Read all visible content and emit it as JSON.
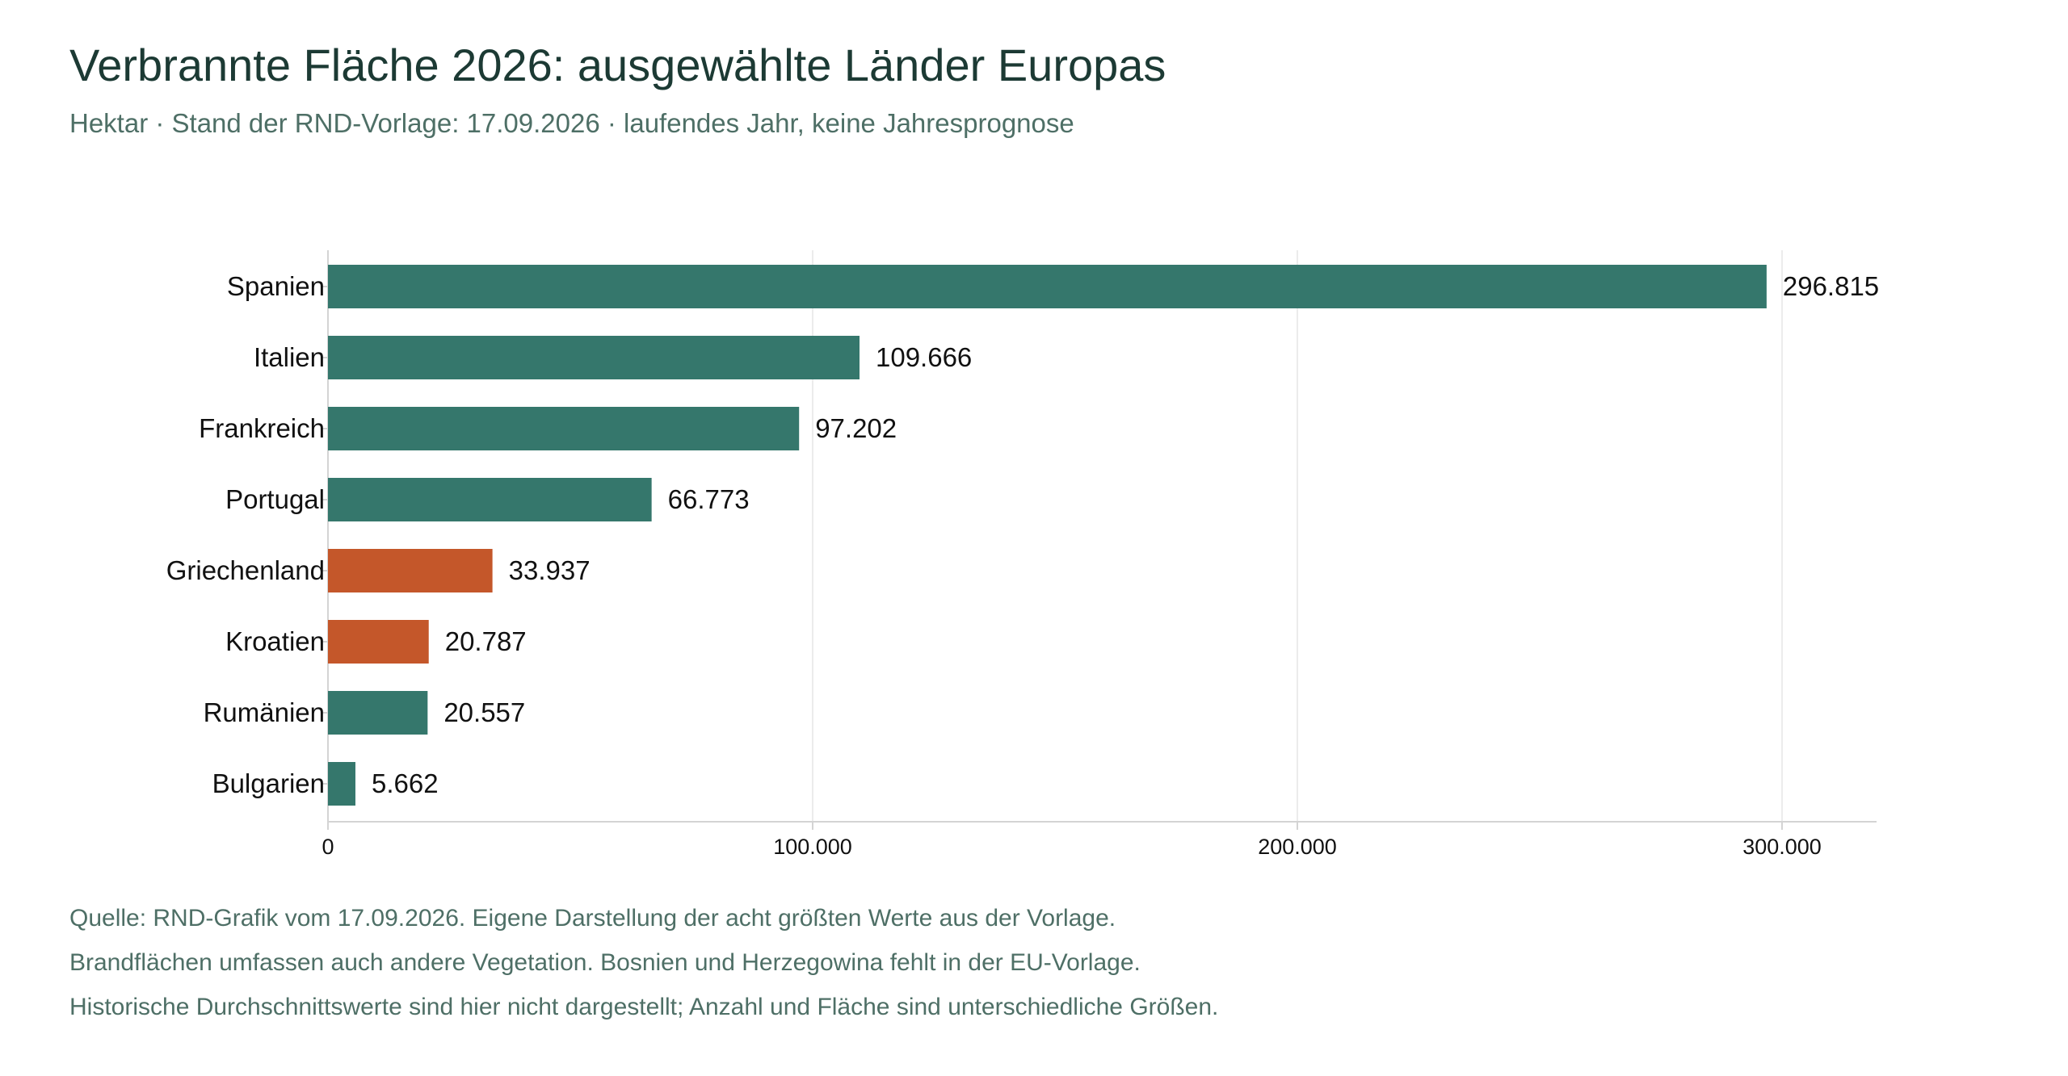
{
  "header": {
    "title": "Verbrannte Fläche 2026: ausgewählte Länder Europas",
    "subtitle": "Hektar · Stand der RND-Vorlage: 17.09.2026 · laufendes Jahr, keine Jahresprognose"
  },
  "chart_data": {
    "type": "bar",
    "orientation": "horizontal",
    "title": "Verbrannte Fläche 2026: ausgewählte Länder Europas",
    "subtitle": "Hektar · Stand der RND-Vorlage: 17.09.2026 · laufendes Jahr, keine Jahresprognose",
    "categories": [
      "Spanien",
      "Italien",
      "Frankreich",
      "Portugal",
      "Griechenland",
      "Kroatien",
      "Rumänien",
      "Bulgarien"
    ],
    "values": [
      296815,
      109666,
      97202,
      66773,
      33937,
      20787,
      20557,
      5662
    ],
    "value_labels": [
      "296.815",
      "109.666",
      "97.202",
      "66.773",
      "33.937",
      "20.787",
      "20.557",
      "5.662"
    ],
    "highlighted": [
      false,
      false,
      false,
      false,
      true,
      true,
      false,
      false
    ],
    "xlim": [
      0,
      320000
    ],
    "xticks": [
      0,
      100000,
      200000,
      300000
    ],
    "xtick_labels": [
      "0",
      "100.000",
      "200.000",
      "300.000"
    ],
    "xlabel": "",
    "ylabel": "",
    "grid": "vertical",
    "legend": "none"
  },
  "colors": {
    "bar": "#35776c",
    "bar_highlight": "#c4572a",
    "title": "#1c3a34",
    "text_muted": "#4e6f66",
    "label": "#111111",
    "grid": "#ececec",
    "axis": "#d4d4d4"
  },
  "notes": [
    "Quelle: RND-Grafik vom 17.09.2026. Eigene Darstellung der acht größten Werte aus der Vorlage.",
    "Brandflächen umfassen auch andere Vegetation. Bosnien und Herzegowina fehlt in der EU-Vorlage.",
    "Historische Durchschnittswerte sind hier nicht dargestellt; Anzahl und Fläche sind unterschiedliche Größen."
  ]
}
